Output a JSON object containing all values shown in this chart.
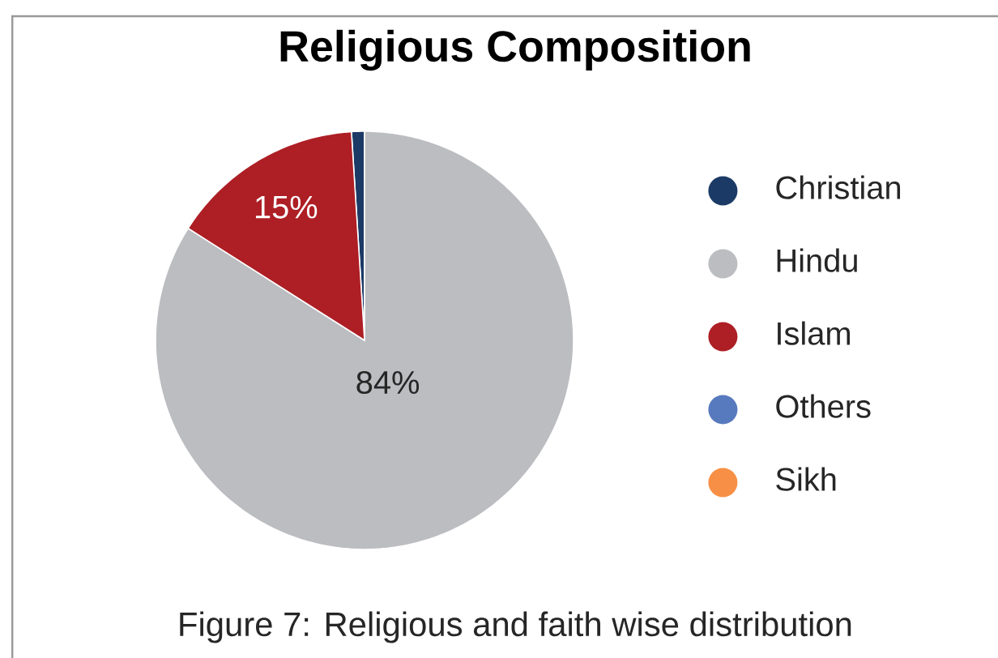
{
  "chart_data": {
    "type": "pie",
    "title": "Religious Composition",
    "categories": [
      "Christian",
      "Hindu",
      "Islam",
      "Others",
      "Sikh"
    ],
    "values": [
      1,
      84,
      15,
      0,
      0
    ],
    "colors": [
      "#1c3a66",
      "#bcbdc1",
      "#ad1f25",
      "#5779bd",
      "#f79046"
    ],
    "value_labels": [
      null,
      "84%",
      "15%",
      null,
      null
    ],
    "legend": "right",
    "annotations": [
      "Figure 7: Religious and faith wise distribution"
    ]
  }
}
